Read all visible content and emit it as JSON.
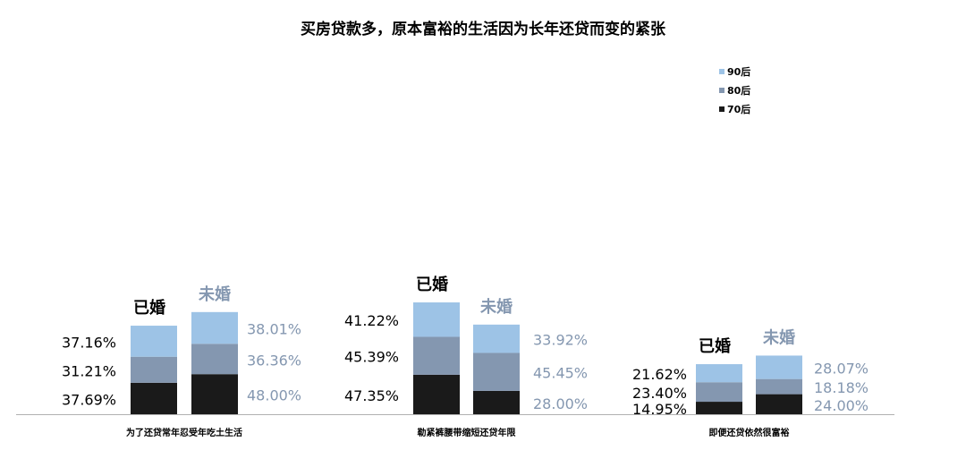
{
  "chart_data": {
    "type": "bar",
    "stacked": true,
    "title": "买房贷款多，原本富裕的生活因为长年还贷而变的紧张",
    "categories": [
      "为了还贷常年忍受年吃土生活",
      "勒紧裤腰带缩短还贷年限",
      "即便还贷依然很富裕"
    ],
    "groups": [
      "已婚",
      "未婚"
    ],
    "series": [
      {
        "name": "70后",
        "color": "#1a1a1a",
        "values": {
          "已婚": [
            37.69,
            47.35,
            14.95
          ],
          "未婚": [
            48.0,
            28.0,
            24.0
          ]
        }
      },
      {
        "name": "80后",
        "color": "#8497b0",
        "values": {
          "已婚": [
            31.21,
            45.39,
            23.4
          ],
          "未婚": [
            36.36,
            45.45,
            18.18
          ]
        }
      },
      {
        "name": "90后",
        "color": "#9dc3e6",
        "values": {
          "已婚": [
            37.16,
            41.22,
            21.62
          ],
          "未婚": [
            38.01,
            33.92,
            28.07
          ]
        }
      }
    ],
    "data_labels": {
      "已婚": [
        [
          "37.69%",
          "31.21%",
          "37.16%"
        ],
        [
          "47.35%",
          "45.39%",
          "41.22%"
        ],
        [
          "14.95%",
          "23.40%",
          "21.62%"
        ]
      ],
      "未婚": [
        [
          "48.00%",
          "36.36%",
          "38.01%"
        ],
        [
          "28.00%",
          "45.45%",
          "33.92%"
        ],
        [
          "24.00%",
          "18.18%",
          "28.07%"
        ]
      ]
    },
    "legend": {
      "position": "top-right",
      "entries": [
        "90后",
        "80后",
        "70后"
      ]
    },
    "colors": {
      "married_label": "#000000",
      "single_label": "#8497b0"
    }
  }
}
